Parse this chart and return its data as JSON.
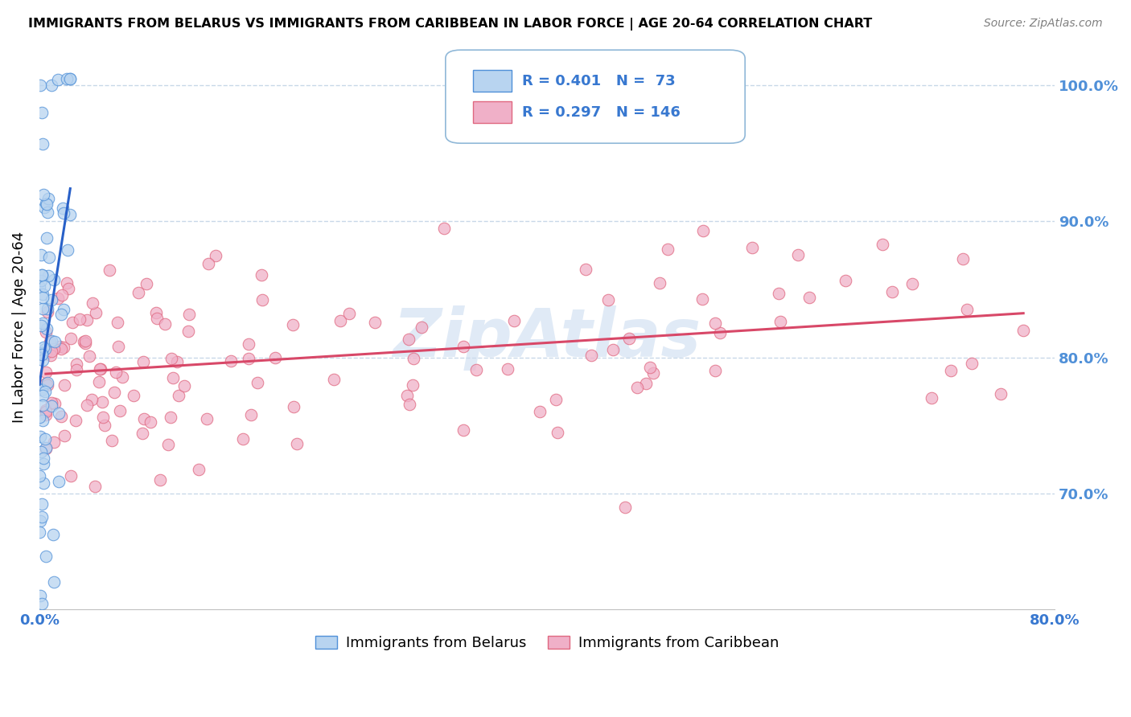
{
  "title": "IMMIGRANTS FROM BELARUS VS IMMIGRANTS FROM CARIBBEAN IN LABOR FORCE | AGE 20-64 CORRELATION CHART",
  "source": "Source: ZipAtlas.com",
  "ylabel": "In Labor Force | Age 20-64",
  "yticks": [
    "70.0%",
    "80.0%",
    "90.0%",
    "100.0%"
  ],
  "ytick_vals": [
    0.7,
    0.8,
    0.9,
    1.0
  ],
  "xlim": [
    0.0,
    0.8
  ],
  "ylim": [
    0.615,
    1.03
  ],
  "legend_r1": "R = 0.401",
  "legend_n1": "N =  73",
  "legend_r2": "R = 0.297",
  "legend_n2": "N = 146",
  "watermark": "ZipAtlas",
  "color_blue_fill": "#b8d4f0",
  "color_pink_fill": "#f0b0c8",
  "color_blue_edge": "#5090d8",
  "color_pink_edge": "#e06880",
  "color_blue_line": "#2860c8",
  "color_pink_line": "#d84868",
  "color_blue_text": "#3878d0",
  "color_right_axis": "#5090d8",
  "color_xtick": "#3878d0",
  "background_color": "#ffffff",
  "grid_color": "#c8d8e8",
  "watermark_color": "#ccddf0"
}
